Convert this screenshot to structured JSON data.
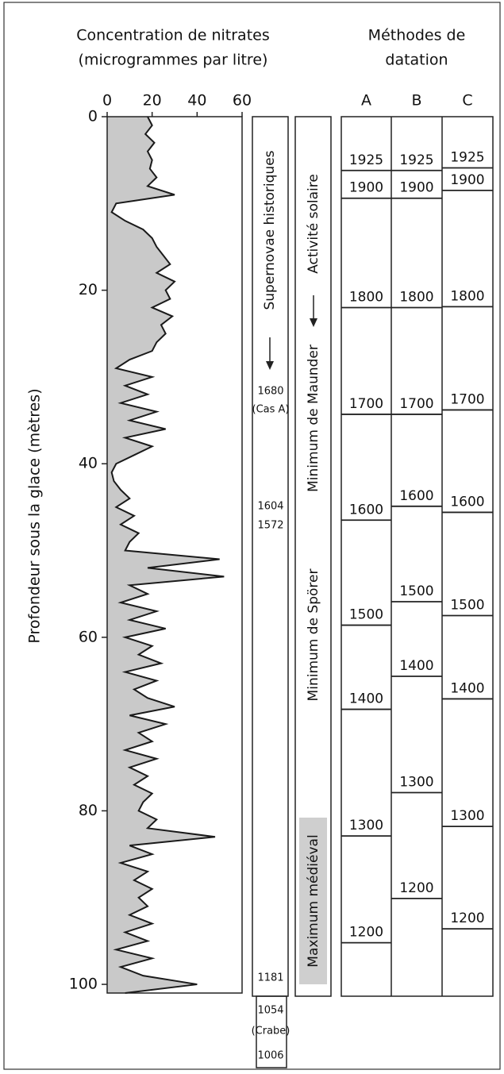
{
  "chart_data": {
    "type": "line",
    "title": "Concentration de nitrates",
    "subtitle": "(microgrammes par litre)",
    "y_label": "Profondeur sous la glace (mètres)",
    "xlim": [
      0,
      60
    ],
    "xticks": [
      0,
      20,
      40,
      60
    ],
    "ylim": [
      0,
      101
    ],
    "yticks": [
      0,
      20,
      40,
      60,
      80,
      100
    ],
    "color": "#1a1a1a",
    "fill": "#c9c9c9",
    "y": [
      0,
      1,
      2,
      3,
      4,
      5,
      6,
      7,
      8,
      9,
      10,
      11,
      12,
      13,
      14,
      15,
      16,
      17,
      18,
      19,
      20,
      21,
      22,
      23,
      24,
      25,
      26,
      27,
      28,
      29,
      30,
      31,
      32,
      33,
      34,
      35,
      36,
      37,
      38,
      39,
      40,
      41,
      42,
      43,
      44,
      45,
      46,
      47,
      48,
      49,
      50,
      51,
      52,
      53,
      54,
      55,
      56,
      57,
      58,
      59,
      60,
      61,
      62,
      63,
      64,
      65,
      66,
      67,
      68,
      69,
      70,
      71,
      72,
      73,
      74,
      75,
      76,
      77,
      78,
      79,
      80,
      81,
      82,
      83,
      84,
      85,
      86,
      87,
      88,
      89,
      90,
      91,
      92,
      93,
      94,
      95,
      96,
      97,
      98,
      99,
      100,
      101
    ],
    "values": [
      18,
      20,
      17,
      21,
      18,
      20,
      19,
      22,
      18,
      30,
      4,
      2,
      8,
      16,
      20,
      22,
      25,
      28,
      22,
      30,
      26,
      28,
      20,
      29,
      24,
      26,
      22,
      20,
      10,
      4,
      20,
      8,
      18,
      6,
      22,
      10,
      26,
      8,
      20,
      12,
      4,
      2,
      3,
      6,
      10,
      4,
      12,
      6,
      14,
      10,
      8,
      50,
      18,
      52,
      10,
      18,
      6,
      22,
      10,
      26,
      8,
      20,
      14,
      24,
      8,
      22,
      12,
      18,
      30,
      10,
      26,
      14,
      20,
      8,
      22,
      10,
      18,
      12,
      20,
      16,
      14,
      22,
      18,
      48,
      10,
      20,
      6,
      18,
      12,
      20,
      14,
      18,
      10,
      20,
      8,
      18,
      4,
      20,
      6,
      16,
      40,
      8
    ]
  },
  "supernovae": {
    "label": "Supernovae historiques",
    "entries": [
      "1680",
      "(Cas A)",
      "1604",
      "1572",
      "1181",
      "1054",
      "(Crabe)",
      "1006"
    ]
  },
  "solar_activity": {
    "label": "Activité solaire",
    "periods": [
      "Minimum de Maunder",
      "Minimum de Spörer",
      "Maximum médiéval"
    ]
  },
  "dating": {
    "title": "Méthodes de",
    "title_2": "datation",
    "methods": [
      {
        "name": "A",
        "years": [
          1925,
          1900,
          1800,
          1700,
          1600,
          1500,
          1400,
          1300,
          1200
        ],
        "depths": [
          6.2,
          9.4,
          22.0,
          34.3,
          46.5,
          58.6,
          68.3,
          82.9,
          95.2
        ]
      },
      {
        "name": "B",
        "years": [
          1925,
          1900,
          1800,
          1700,
          1600,
          1500,
          1400,
          1300,
          1200
        ],
        "depths": [
          6.2,
          9.4,
          22.0,
          34.3,
          44.9,
          55.9,
          64.5,
          77.9,
          90.1
        ]
      },
      {
        "name": "C",
        "years": [
          1925,
          1900,
          1800,
          1700,
          1600,
          1500,
          1400,
          1300,
          1200
        ],
        "depths": [
          5.9,
          8.5,
          21.9,
          33.8,
          45.6,
          57.5,
          67.1,
          81.8,
          93.6
        ]
      }
    ]
  }
}
